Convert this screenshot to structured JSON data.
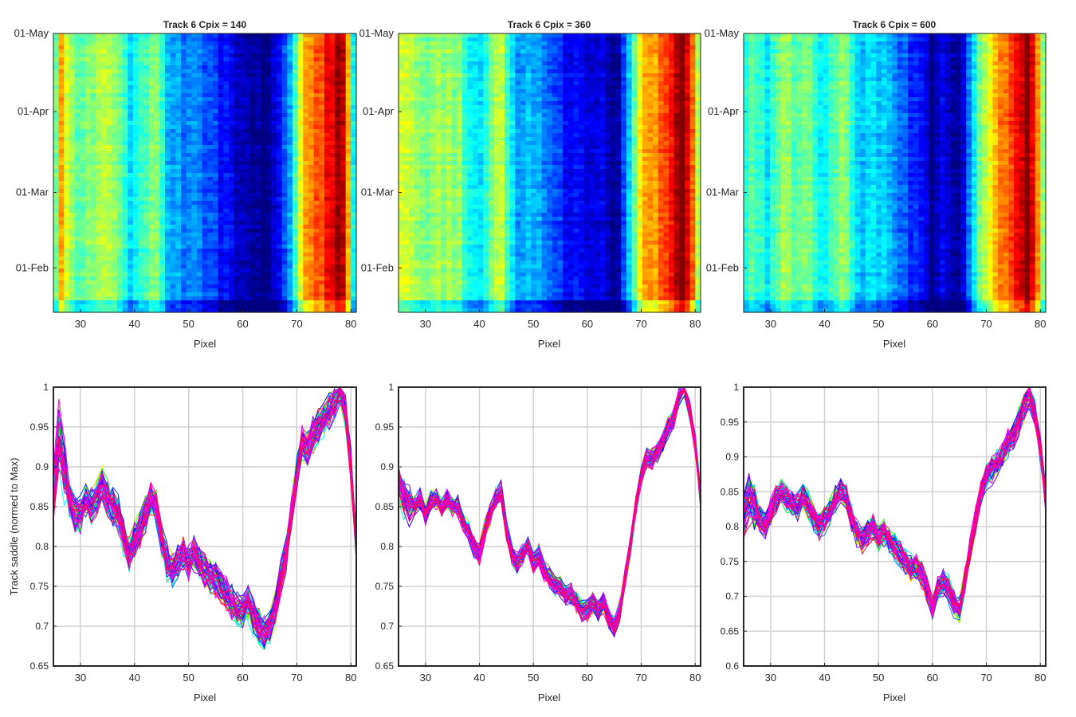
{
  "figure": {
    "colormap_top": "jet",
    "colormap_bottom": "hsv"
  },
  "chart_data": [
    {
      "type": "heatmap",
      "title": "Track 6 Cpix = 140",
      "xlabel": "Pixel",
      "ylabel": "",
      "xlim": [
        25,
        81
      ],
      "ylim": [
        "2016-01-15",
        "2016-05-01"
      ],
      "x_ticks": [
        30,
        40,
        50,
        60,
        70,
        80
      ],
      "y_ticks": [
        {
          "label": "01-May",
          "date": "2016-05-01"
        },
        {
          "label": "01-Apr",
          "date": "2016-04-01"
        },
        {
          "label": "01-Mar",
          "date": "2016-03-01"
        },
        {
          "label": "01-Feb",
          "date": "2016-02-01"
        }
      ],
      "grid": false,
      "x": [
        25,
        26,
        27,
        28,
        29,
        30,
        31,
        32,
        33,
        34,
        35,
        36,
        37,
        38,
        39,
        40,
        41,
        42,
        43,
        44,
        45,
        46,
        47,
        48,
        49,
        50,
        51,
        52,
        53,
        54,
        55,
        56,
        57,
        58,
        59,
        60,
        61,
        62,
        63,
        64,
        65,
        66,
        67,
        68,
        69,
        70,
        71,
        72,
        73,
        74,
        75,
        76,
        77,
        78,
        79,
        80,
        81
      ],
      "profile": [
        0.84,
        0.9,
        0.87,
        0.85,
        0.83,
        0.84,
        0.85,
        0.84,
        0.86,
        0.87,
        0.86,
        0.85,
        0.84,
        0.82,
        0.8,
        0.81,
        0.82,
        0.83,
        0.84,
        0.85,
        0.82,
        0.79,
        0.78,
        0.78,
        0.77,
        0.78,
        0.78,
        0.77,
        0.76,
        0.76,
        0.75,
        0.74,
        0.74,
        0.73,
        0.72,
        0.72,
        0.72,
        0.71,
        0.71,
        0.7,
        0.7,
        0.72,
        0.74,
        0.76,
        0.79,
        0.83,
        0.88,
        0.91,
        0.92,
        0.93,
        0.93,
        0.95,
        0.96,
        0.99,
        0.97,
        0.9,
        0.81
      ]
    },
    {
      "type": "heatmap",
      "title": "Track 6 Cpix = 360",
      "xlabel": "Pixel",
      "ylabel": "",
      "xlim": [
        25,
        81
      ],
      "ylim": [
        "2016-01-15",
        "2016-05-01"
      ],
      "x_ticks": [
        30,
        40,
        50,
        60,
        70,
        80
      ],
      "y_ticks": [
        {
          "label": "01-May",
          "date": "2016-05-01"
        },
        {
          "label": "01-Apr",
          "date": "2016-04-01"
        },
        {
          "label": "01-Mar",
          "date": "2016-03-01"
        },
        {
          "label": "01-Feb",
          "date": "2016-02-01"
        }
      ],
      "grid": false,
      "x": [
        25,
        26,
        27,
        28,
        29,
        30,
        31,
        32,
        33,
        34,
        35,
        36,
        37,
        38,
        39,
        40,
        41,
        42,
        43,
        44,
        45,
        46,
        47,
        48,
        49,
        50,
        51,
        52,
        53,
        54,
        55,
        56,
        57,
        58,
        59,
        60,
        61,
        62,
        63,
        64,
        65,
        66,
        67,
        68,
        69,
        70,
        71,
        72,
        73,
        74,
        75,
        76,
        77,
        78,
        79,
        80,
        81
      ],
      "profile": [
        0.87,
        0.87,
        0.86,
        0.86,
        0.85,
        0.84,
        0.86,
        0.86,
        0.85,
        0.86,
        0.85,
        0.85,
        0.83,
        0.82,
        0.81,
        0.8,
        0.82,
        0.84,
        0.86,
        0.87,
        0.83,
        0.8,
        0.78,
        0.78,
        0.79,
        0.78,
        0.79,
        0.78,
        0.76,
        0.76,
        0.75,
        0.74,
        0.74,
        0.74,
        0.73,
        0.72,
        0.73,
        0.72,
        0.73,
        0.72,
        0.7,
        0.72,
        0.76,
        0.8,
        0.84,
        0.89,
        0.91,
        0.92,
        0.92,
        0.93,
        0.95,
        0.96,
        0.99,
        1.0,
        0.97,
        0.93,
        0.87
      ]
    },
    {
      "type": "heatmap",
      "title": "Track 6 Cpix = 600",
      "xlabel": "Pixel",
      "ylabel": "",
      "xlim": [
        25,
        81
      ],
      "ylim": [
        "2016-01-15",
        "2016-05-01"
      ],
      "x_ticks": [
        30,
        40,
        50,
        60,
        70,
        80
      ],
      "y_ticks": [
        {
          "label": "01-May",
          "date": "2016-05-01"
        },
        {
          "label": "01-Apr",
          "date": "2016-04-01"
        },
        {
          "label": "01-Mar",
          "date": "2016-03-01"
        },
        {
          "label": "01-Feb",
          "date": "2016-02-01"
        }
      ],
      "grid": false,
      "x": [
        25,
        26,
        27,
        28,
        29,
        30,
        31,
        32,
        33,
        34,
        35,
        36,
        37,
        38,
        39,
        40,
        41,
        42,
        43,
        44,
        45,
        46,
        47,
        48,
        49,
        50,
        51,
        52,
        53,
        54,
        55,
        56,
        57,
        58,
        59,
        60,
        61,
        62,
        63,
        64,
        65,
        66,
        67,
        68,
        69,
        70,
        71,
        72,
        73,
        74,
        75,
        76,
        77,
        78,
        79,
        80,
        81
      ],
      "profile": [
        0.81,
        0.83,
        0.82,
        0.81,
        0.8,
        0.82,
        0.84,
        0.85,
        0.84,
        0.83,
        0.83,
        0.84,
        0.83,
        0.82,
        0.8,
        0.81,
        0.82,
        0.83,
        0.84,
        0.84,
        0.81,
        0.79,
        0.78,
        0.79,
        0.8,
        0.78,
        0.79,
        0.78,
        0.77,
        0.76,
        0.75,
        0.74,
        0.74,
        0.73,
        0.72,
        0.69,
        0.71,
        0.72,
        0.71,
        0.7,
        0.69,
        0.72,
        0.76,
        0.8,
        0.84,
        0.86,
        0.88,
        0.9,
        0.91,
        0.92,
        0.93,
        0.95,
        0.97,
        0.99,
        0.96,
        0.91,
        0.84
      ]
    },
    {
      "type": "line",
      "title": "",
      "xlabel": "Pixel",
      "ylabel": "Track saddle (normed to Max)",
      "xlim": [
        25,
        81
      ],
      "ylim": [
        0.65,
        1
      ],
      "x_ticks": [
        30,
        40,
        50,
        60,
        70,
        80
      ],
      "y_ticks": [
        0.65,
        0.7,
        0.75,
        0.8,
        0.85,
        0.9,
        0.95,
        1
      ],
      "grid": true,
      "series_count": 60,
      "series_spread": 0.035,
      "x": [
        25,
        26,
        27,
        28,
        29,
        30,
        31,
        32,
        33,
        34,
        35,
        36,
        37,
        38,
        39,
        40,
        41,
        42,
        43,
        44,
        45,
        46,
        47,
        48,
        49,
        50,
        51,
        52,
        53,
        54,
        55,
        56,
        57,
        58,
        59,
        60,
        61,
        62,
        63,
        64,
        65,
        66,
        67,
        68,
        69,
        70,
        71,
        72,
        73,
        74,
        75,
        76,
        77,
        78,
        79,
        80,
        81
      ],
      "mean_profile": [
        0.86,
        0.94,
        0.9,
        0.86,
        0.84,
        0.84,
        0.86,
        0.85,
        0.86,
        0.88,
        0.86,
        0.85,
        0.84,
        0.81,
        0.79,
        0.81,
        0.82,
        0.84,
        0.86,
        0.85,
        0.81,
        0.78,
        0.77,
        0.78,
        0.79,
        0.78,
        0.79,
        0.78,
        0.77,
        0.76,
        0.76,
        0.75,
        0.74,
        0.73,
        0.72,
        0.72,
        0.73,
        0.71,
        0.7,
        0.69,
        0.7,
        0.72,
        0.76,
        0.79,
        0.84,
        0.89,
        0.93,
        0.92,
        0.94,
        0.95,
        0.96,
        0.97,
        0.98,
        1.0,
        0.97,
        0.9,
        0.8
      ]
    },
    {
      "type": "line",
      "title": "",
      "xlabel": "Pixel",
      "ylabel": "",
      "xlim": [
        25,
        81
      ],
      "ylim": [
        0.65,
        1
      ],
      "x_ticks": [
        30,
        40,
        50,
        60,
        70,
        80
      ],
      "y_ticks": [
        0.65,
        0.7,
        0.75,
        0.8,
        0.85,
        0.9,
        0.95,
        1
      ],
      "grid": true,
      "series_count": 60,
      "series_spread": 0.02,
      "x": [
        25,
        26,
        27,
        28,
        29,
        30,
        31,
        32,
        33,
        34,
        35,
        36,
        37,
        38,
        39,
        40,
        41,
        42,
        43,
        44,
        45,
        46,
        47,
        48,
        49,
        50,
        51,
        52,
        53,
        54,
        55,
        56,
        57,
        58,
        59,
        60,
        61,
        62,
        63,
        64,
        65,
        66,
        67,
        68,
        69,
        70,
        71,
        72,
        73,
        74,
        75,
        76,
        77,
        78,
        79,
        80,
        81
      ],
      "mean_profile": [
        0.88,
        0.86,
        0.85,
        0.85,
        0.86,
        0.84,
        0.86,
        0.86,
        0.85,
        0.86,
        0.85,
        0.85,
        0.83,
        0.82,
        0.8,
        0.79,
        0.82,
        0.84,
        0.86,
        0.87,
        0.82,
        0.79,
        0.78,
        0.79,
        0.8,
        0.78,
        0.79,
        0.77,
        0.76,
        0.75,
        0.75,
        0.74,
        0.74,
        0.73,
        0.72,
        0.72,
        0.73,
        0.72,
        0.73,
        0.71,
        0.7,
        0.72,
        0.76,
        0.8,
        0.85,
        0.89,
        0.91,
        0.91,
        0.92,
        0.93,
        0.95,
        0.96,
        0.99,
        1.0,
        0.97,
        0.93,
        0.86
      ]
    },
    {
      "type": "line",
      "title": "",
      "xlabel": "Pixel",
      "ylabel": "",
      "xlim": [
        25,
        81
      ],
      "ylim": [
        0.6,
        1
      ],
      "x_ticks": [
        30,
        40,
        50,
        60,
        70,
        80
      ],
      "y_ticks": [
        0.6,
        0.65,
        0.7,
        0.75,
        0.8,
        0.85,
        0.9,
        0.95,
        1
      ],
      "grid": true,
      "series_count": 60,
      "series_spread": 0.03,
      "x": [
        25,
        26,
        27,
        28,
        29,
        30,
        31,
        32,
        33,
        34,
        35,
        36,
        37,
        38,
        39,
        40,
        41,
        42,
        43,
        44,
        45,
        46,
        47,
        48,
        49,
        50,
        51,
        52,
        53,
        54,
        55,
        56,
        57,
        58,
        59,
        60,
        61,
        62,
        63,
        64,
        65,
        66,
        67,
        68,
        69,
        70,
        71,
        72,
        73,
        74,
        75,
        76,
        77,
        78,
        79,
        80,
        81
      ],
      "mean_profile": [
        0.82,
        0.84,
        0.83,
        0.81,
        0.8,
        0.82,
        0.84,
        0.85,
        0.84,
        0.83,
        0.83,
        0.84,
        0.83,
        0.81,
        0.8,
        0.81,
        0.82,
        0.84,
        0.85,
        0.84,
        0.81,
        0.79,
        0.78,
        0.79,
        0.8,
        0.78,
        0.79,
        0.78,
        0.77,
        0.76,
        0.75,
        0.74,
        0.74,
        0.73,
        0.71,
        0.68,
        0.71,
        0.72,
        0.71,
        0.69,
        0.68,
        0.72,
        0.77,
        0.81,
        0.85,
        0.87,
        0.88,
        0.89,
        0.9,
        0.92,
        0.93,
        0.95,
        0.97,
        0.99,
        0.96,
        0.91,
        0.84
      ]
    }
  ]
}
